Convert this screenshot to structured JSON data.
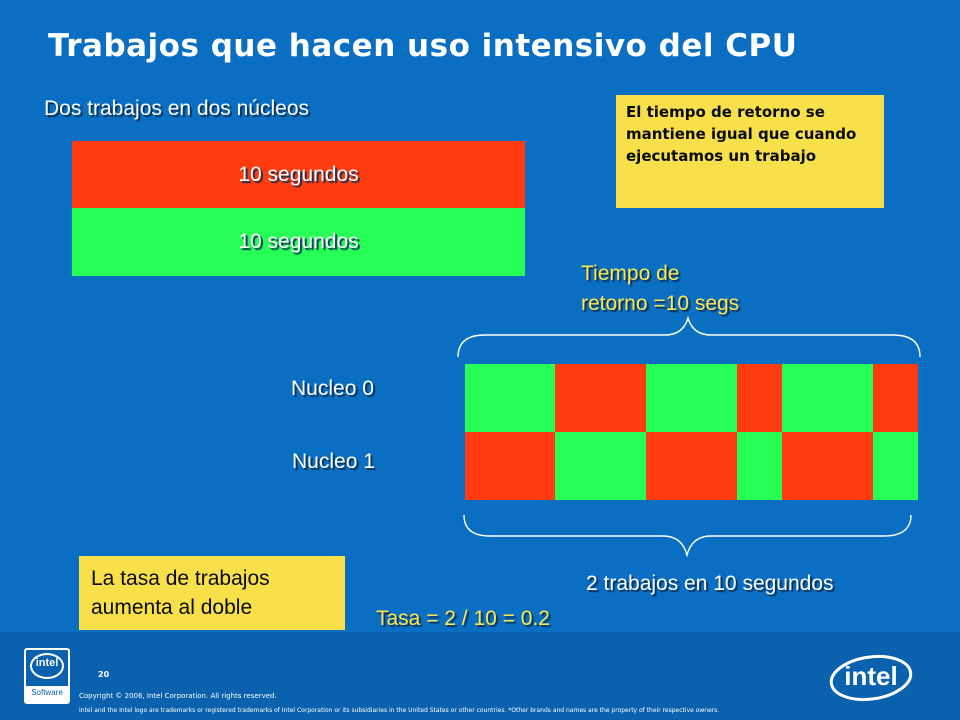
{
  "title": "Trabajos que hacen uso intensivo del CPU",
  "subtitle": "Dos trabajos en dos núcleos",
  "job_bars": [
    "10 segundos",
    "10 segundos"
  ],
  "note_top": "El tiempo de retorno se mantiene igual que cuando ejecutamos un trabajo",
  "turnaround": [
    "Tiempo de",
    "retorno =10 segs"
  ],
  "core_labels": [
    "Nucleo 0",
    "Nucleo 1"
  ],
  "schedule": {
    "core0": [
      "green",
      "red",
      "green",
      "red",
      "green",
      "red"
    ],
    "core1": [
      "red",
      "green",
      "red",
      "green",
      "red",
      "green"
    ]
  },
  "jobs_in_time": "2 trabajos en 10 segundos",
  "rate": "Tasa = 2 / 10 = 0.2",
  "note_bottom": [
    "La tasa de trabajos",
    "aumenta al doble"
  ],
  "footer": {
    "page_number": "20",
    "copyright": "Copyright © 2006, Intel Corporation. All rights reserved.",
    "trademark": "Intel and the Intel logo are trademarks or registered trademarks of Intel Corporation or its subsidiaries in the United States or other countries. *Other brands and names are the property of their respective owners.",
    "logo_small_text": "intel",
    "logo_small_caption": "Software",
    "logo_large_text": "intel"
  },
  "colors": {
    "red": "#ff3b10",
    "green": "#25ff56",
    "background": "#0a6fc2",
    "note": "#f7e04a"
  }
}
